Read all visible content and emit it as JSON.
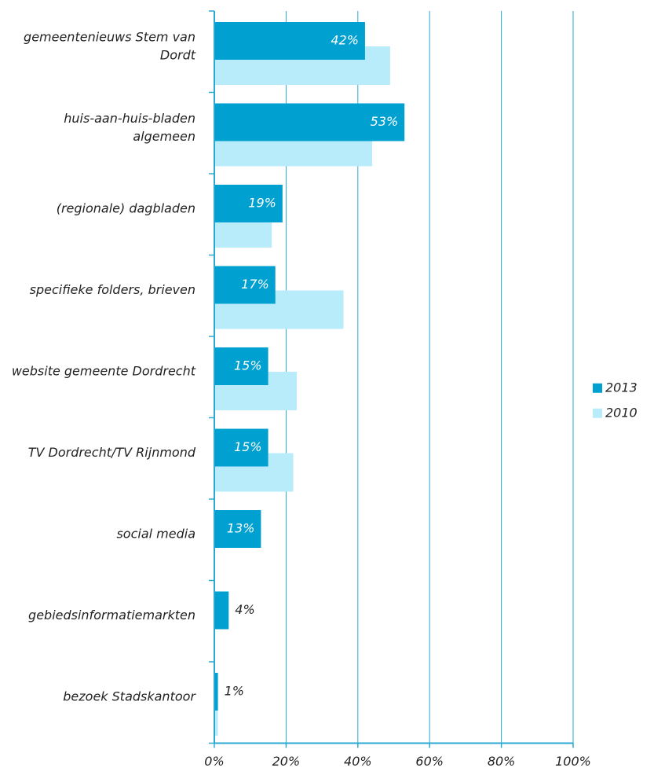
{
  "chart_data": {
    "type": "hbar",
    "categories": [
      "gemeentenieuws Stem van Dordt",
      "huis-aan-huis-bladen algemeen",
      "(regionale) dagbladen",
      "specifieke folders, brieven",
      "website gemeente Dordrecht",
      "TV Dordrecht/TV Rijnmond",
      "social media",
      "gebiedsinformatiemarkten",
      "bezoek Stadskantoor"
    ],
    "series": [
      {
        "name": "2013",
        "color": "#00a0d1",
        "values": [
          42,
          53,
          19,
          17,
          15,
          15,
          13,
          4,
          1
        ],
        "value_labels": [
          "42%",
          "53%",
          "19%",
          "17%",
          "15%",
          "15%",
          "13%",
          "4%",
          "1%"
        ]
      },
      {
        "name": "2010",
        "color": "#b9ecfb",
        "values": [
          49,
          44,
          16,
          36,
          23,
          22,
          0,
          0,
          1
        ]
      }
    ],
    "xlim": [
      0,
      100
    ],
    "xticks": [
      {
        "value": 0,
        "label": "0%"
      },
      {
        "value": 20,
        "label": "20%"
      },
      {
        "value": 40,
        "label": "40%"
      },
      {
        "value": 60,
        "label": "60%"
      },
      {
        "value": 80,
        "label": "80%"
      },
      {
        "value": 100,
        "label": "100%"
      }
    ],
    "grid": true,
    "legend": "right"
  }
}
